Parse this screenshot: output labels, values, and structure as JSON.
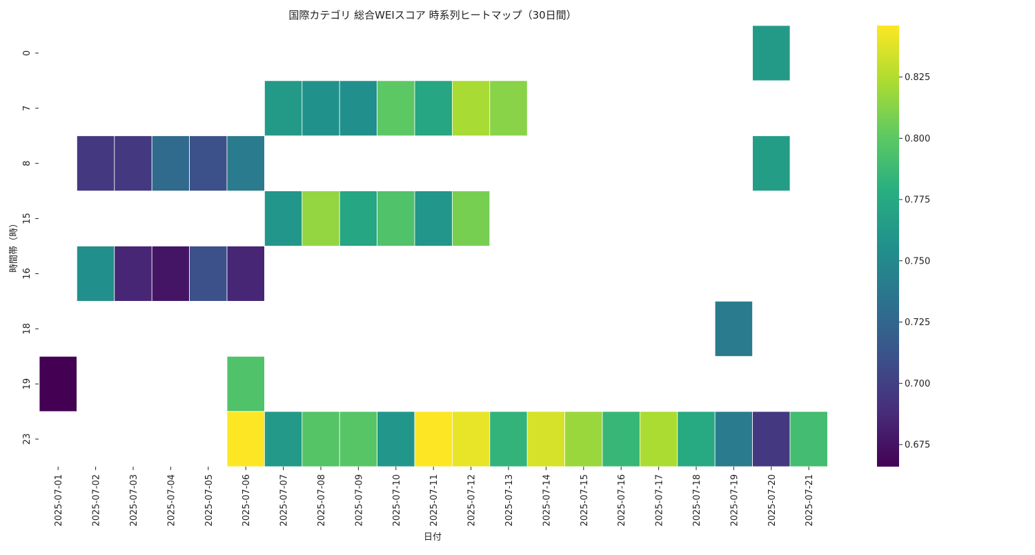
{
  "chart_data": {
    "type": "heatmap",
    "title": "国際カテゴリ 総合WEIスコア 時系列ヒートマップ（30日間）",
    "xlabel": "日付",
    "ylabel": "時間帯（時）",
    "x": [
      "2025-07-01",
      "2025-07-02",
      "2025-07-03",
      "2025-07-04",
      "2025-07-05",
      "2025-07-06",
      "2025-07-07",
      "2025-07-08",
      "2025-07-09",
      "2025-07-10",
      "2025-07-11",
      "2025-07-12",
      "2025-07-13",
      "2025-07-14",
      "2025-07-15",
      "2025-07-16",
      "2025-07-17",
      "2025-07-18",
      "2025-07-19",
      "2025-07-20",
      "2025-07-21"
    ],
    "y": [
      "0",
      "7",
      "8",
      "15",
      "16",
      "18",
      "19",
      "23"
    ],
    "values": [
      [
        null,
        null,
        null,
        null,
        null,
        null,
        null,
        null,
        null,
        null,
        null,
        null,
        null,
        null,
        null,
        null,
        null,
        null,
        null,
        0.763,
        null
      ],
      [
        null,
        null,
        null,
        null,
        null,
        null,
        0.763,
        0.757,
        0.755,
        0.8,
        0.772,
        0.822,
        0.813,
        null,
        null,
        null,
        null,
        null,
        null,
        null,
        null
      ],
      [
        null,
        0.695,
        0.695,
        0.728,
        0.71,
        0.74,
        null,
        null,
        null,
        null,
        null,
        null,
        null,
        null,
        null,
        null,
        null,
        null,
        null,
        0.765,
        null
      ],
      [
        null,
        null,
        null,
        null,
        null,
        null,
        0.76,
        0.816,
        0.772,
        0.795,
        0.76,
        0.808,
        null,
        null,
        null,
        null,
        null,
        null,
        null,
        null,
        null
      ],
      [
        null,
        0.755,
        0.685,
        0.676,
        0.71,
        0.685,
        null,
        null,
        null,
        null,
        null,
        null,
        null,
        null,
        null,
        null,
        null,
        null,
        null,
        null,
        null
      ],
      [
        null,
        null,
        null,
        null,
        null,
        null,
        null,
        null,
        null,
        null,
        null,
        null,
        null,
        null,
        null,
        null,
        null,
        null,
        0.74,
        null,
        null
      ],
      [
        0.666,
        null,
        null,
        null,
        null,
        0.795,
        null,
        null,
        null,
        null,
        null,
        null,
        null,
        null,
        null,
        null,
        null,
        null,
        null,
        null,
        null
      ],
      [
        null,
        null,
        null,
        null,
        null,
        0.846,
        0.762,
        0.797,
        0.798,
        0.76,
        0.846,
        0.84,
        0.783,
        0.835,
        0.818,
        0.785,
        0.823,
        0.775,
        0.74,
        0.695,
        0.79
      ]
    ],
    "colorbar": {
      "range": [
        0.666,
        0.846
      ],
      "ticks": [
        "0.675",
        "0.700",
        "0.725",
        "0.750",
        "0.775",
        "0.800",
        "0.825"
      ],
      "colormap": "viridis"
    }
  }
}
